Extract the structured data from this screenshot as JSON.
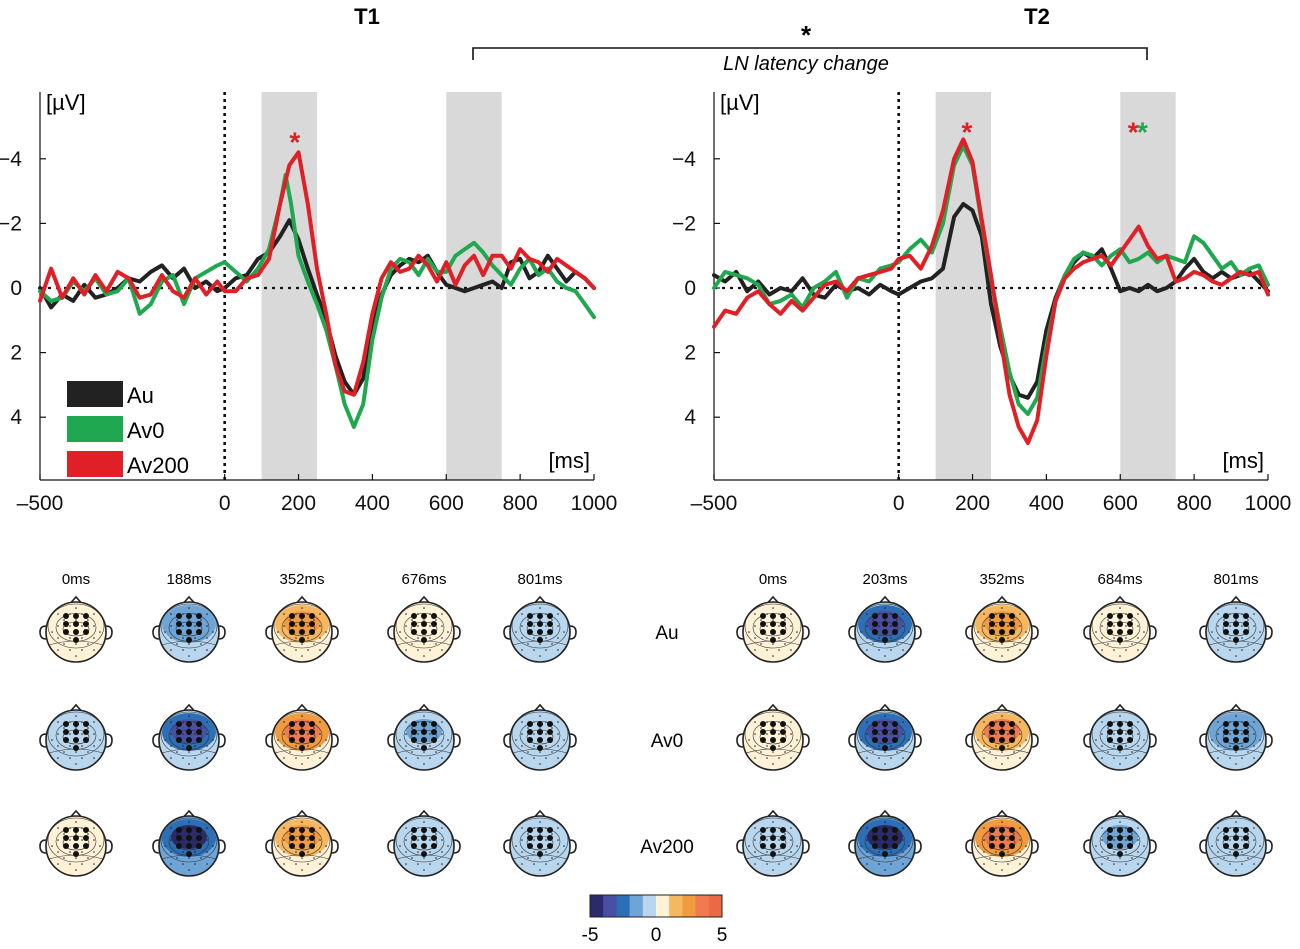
{
  "chart_data": [
    {
      "type": "line",
      "title": "T1",
      "xlabel": "[ms]",
      "ylabel": "[µV]",
      "xlim": [
        -500,
        1000
      ],
      "ylim": [
        -5.5,
        5.8
      ],
      "y_inverted": true,
      "xticks": [
        -500,
        0,
        200,
        400,
        600,
        800,
        1000
      ],
      "yticks": [
        -4,
        -2,
        0,
        2,
        4
      ],
      "ytick_labels": [
        "−4",
        "−2",
        "0",
        "2",
        "4"
      ],
      "shaded_windows": [
        [
          100,
          250
        ],
        [
          600,
          750
        ]
      ],
      "annotations": [
        {
          "text": "*",
          "x": 190,
          "y": -4.6,
          "color": "#e01f26"
        }
      ],
      "series": [
        {
          "name": "Au",
          "color": "#222222",
          "x": [
            -500,
            -470,
            -440,
            -410,
            -380,
            -350,
            -320,
            -290,
            -260,
            -230,
            -200,
            -170,
            -140,
            -110,
            -80,
            -50,
            -20,
            0,
            30,
            60,
            90,
            120,
            150,
            175,
            200,
            225,
            250,
            275,
            300,
            325,
            350,
            375,
            400,
            425,
            450,
            475,
            500,
            525,
            550,
            575,
            600,
            625,
            650,
            675,
            700,
            725,
            750,
            775,
            800,
            825,
            850,
            875,
            900,
            925,
            950,
            975,
            1000
          ],
          "values": [
            0,
            0.6,
            0.2,
            0.4,
            -0.1,
            0.3,
            0.2,
            0,
            -0.3,
            -0.2,
            -0.5,
            -0.7,
            -0.3,
            -0.6,
            0,
            -0.2,
            0.1,
            0,
            -0.3,
            -0.4,
            -0.9,
            -1.1,
            -1.6,
            -2.1,
            -1.5,
            -0.6,
            0.2,
            1.0,
            2.1,
            2.9,
            3.3,
            2.8,
            1.2,
            0.2,
            -0.4,
            -0.7,
            -0.9,
            -0.8,
            -1.0,
            -0.5,
            -0.1,
            0,
            0.1,
            0,
            -0.1,
            -0.2,
            0,
            -0.8,
            -0.9,
            -0.3,
            -0.5,
            -1.0,
            -0.6,
            -0.2,
            -0.5,
            -0.3,
            0
          ]
        },
        {
          "name": "Av0",
          "color": "#1fa84f",
          "x": [
            -500,
            -470,
            -440,
            -410,
            -380,
            -350,
            -320,
            -290,
            -260,
            -230,
            -200,
            -170,
            -140,
            -110,
            -80,
            -50,
            -20,
            0,
            30,
            60,
            90,
            120,
            150,
            165,
            180,
            200,
            225,
            250,
            275,
            300,
            325,
            350,
            375,
            400,
            425,
            450,
            475,
            500,
            525,
            550,
            575,
            600,
            625,
            650,
            675,
            700,
            725,
            750,
            775,
            800,
            825,
            850,
            875,
            900,
            925,
            950,
            975,
            1000
          ],
          "values": [
            0.1,
            0.4,
            0.3,
            -0.2,
            0.1,
            -0.3,
            0.2,
            0.1,
            -0.3,
            0.8,
            0.5,
            -0.2,
            -0.4,
            0.5,
            -0.3,
            -0.5,
            -0.7,
            -0.8,
            -0.5,
            -0.2,
            -0.6,
            -1.2,
            -2.6,
            -3.5,
            -2.6,
            -1.0,
            -0.2,
            0.5,
            1.3,
            2.4,
            3.6,
            4.3,
            3.6,
            1.6,
            0.3,
            -0.6,
            -0.9,
            -0.8,
            -0.4,
            -0.9,
            -0.5,
            -0.5,
            -1.0,
            -1.2,
            -1.4,
            -1.1,
            -0.7,
            -0.4,
            -0.1,
            -0.6,
            -0.9,
            -0.4,
            -0.6,
            -0.2,
            0,
            0.1,
            0.5,
            0.9
          ]
        },
        {
          "name": "Av200",
          "color": "#e01f26",
          "x": [
            -500,
            -470,
            -440,
            -410,
            -380,
            -350,
            -320,
            -290,
            -260,
            -230,
            -200,
            -170,
            -140,
            -110,
            -80,
            -50,
            -20,
            0,
            30,
            60,
            90,
            120,
            150,
            175,
            200,
            225,
            250,
            275,
            300,
            325,
            350,
            375,
            400,
            425,
            450,
            475,
            500,
            525,
            550,
            575,
            600,
            625,
            650,
            675,
            700,
            725,
            750,
            775,
            800,
            825,
            850,
            875,
            900,
            925,
            950,
            975,
            1000
          ],
          "values": [
            0.4,
            -0.6,
            0.3,
            -0.3,
            0.2,
            -0.4,
            0.1,
            -0.5,
            -0.3,
            0.3,
            0.2,
            -0.4,
            0.1,
            0.3,
            -0.3,
            0.2,
            -0.2,
            0.1,
            0.1,
            -0.3,
            -0.4,
            -0.9,
            -2.6,
            -3.8,
            -4.2,
            -2.6,
            -0.6,
            0.8,
            2.4,
            3.2,
            3.3,
            2.3,
            0.8,
            -0.3,
            -0.8,
            -0.5,
            -0.6,
            -1.0,
            -0.7,
            -0.2,
            -0.8,
            -0.1,
            -0.7,
            -1.0,
            -0.4,
            -1.0,
            -1.0,
            -0.6,
            -1.2,
            -0.9,
            -0.8,
            -0.5,
            -0.9,
            -0.7,
            -0.5,
            -0.3,
            0
          ]
        }
      ]
    },
    {
      "type": "line",
      "title": "T2",
      "xlabel": "[ms]",
      "ylabel": "[µV]",
      "xlim": [
        -500,
        1000
      ],
      "ylim": [
        -5.5,
        5.8
      ],
      "y_inverted": true,
      "xticks": [
        -500,
        0,
        200,
        400,
        600,
        800,
        1000
      ],
      "yticks": [
        -4,
        -2,
        0,
        2,
        4
      ],
      "ytick_labels": [
        "−4",
        "−2",
        "0",
        "2",
        "4"
      ],
      "shaded_windows": [
        [
          100,
          250
        ],
        [
          600,
          750
        ]
      ],
      "annotations": [
        {
          "text": "*",
          "x": 185,
          "y": -4.9,
          "color": "#e01f26"
        },
        {
          "text": "*",
          "x": 635,
          "y": -4.9,
          "color": "#e01f26"
        },
        {
          "text": "*",
          "x": 660,
          "y": -4.9,
          "color": "#1fa84f"
        }
      ],
      "series": [
        {
          "name": "Au",
          "color": "#222222",
          "x": [
            -500,
            -470,
            -440,
            -410,
            -380,
            -350,
            -320,
            -290,
            -260,
            -230,
            -200,
            -170,
            -140,
            -110,
            -80,
            -50,
            -20,
            0,
            30,
            60,
            90,
            120,
            150,
            175,
            200,
            225,
            250,
            275,
            300,
            325,
            350,
            375,
            400,
            425,
            450,
            475,
            500,
            525,
            550,
            575,
            600,
            625,
            650,
            675,
            700,
            725,
            750,
            775,
            800,
            825,
            850,
            875,
            900,
            925,
            950,
            975,
            1000
          ],
          "values": [
            -0.4,
            -0.2,
            -0.5,
            0.1,
            -0.2,
            0.2,
            0,
            0.1,
            -0.3,
            0.2,
            0.3,
            -0.1,
            0.1,
            0,
            0.2,
            -0.1,
            0.1,
            0.2,
            0,
            -0.2,
            -0.3,
            -0.6,
            -2.2,
            -2.6,
            -2.4,
            -1.6,
            0.5,
            1.8,
            2.7,
            3.3,
            3.4,
            2.9,
            1.3,
            0.3,
            -0.4,
            -0.8,
            -1.1,
            -0.9,
            -1.2,
            -0.6,
            0.1,
            0,
            0.1,
            -0.1,
            0.1,
            0,
            -0.2,
            -0.6,
            -0.9,
            -0.5,
            -0.3,
            -0.5,
            -0.3,
            -0.4,
            -0.5,
            -0.2,
            0.1
          ]
        },
        {
          "name": "Av0",
          "color": "#1fa84f",
          "x": [
            -500,
            -470,
            -440,
            -410,
            -380,
            -350,
            -320,
            -290,
            -260,
            -230,
            -200,
            -170,
            -140,
            -110,
            -80,
            -50,
            -20,
            0,
            30,
            60,
            90,
            120,
            150,
            175,
            200,
            225,
            250,
            275,
            300,
            325,
            350,
            375,
            400,
            425,
            450,
            475,
            500,
            525,
            550,
            575,
            600,
            625,
            650,
            675,
            700,
            725,
            750,
            775,
            800,
            825,
            850,
            875,
            900,
            925,
            950,
            975,
            1000
          ],
          "values": [
            0,
            -0.5,
            -0.4,
            -0.3,
            -0.1,
            0.5,
            0.4,
            0.2,
            0.6,
            0,
            -0.2,
            -0.5,
            0.3,
            -0.3,
            -0.2,
            -0.6,
            -0.7,
            -0.8,
            -1.2,
            -1.5,
            -1.1,
            -2.0,
            -3.8,
            -4.4,
            -3.8,
            -2.0,
            -0.3,
            1.2,
            2.6,
            3.6,
            3.9,
            3.4,
            1.8,
            0.4,
            -0.4,
            -0.9,
            -1.1,
            -1.0,
            -0.7,
            -1.0,
            -1.2,
            -0.8,
            -0.9,
            -1.1,
            -0.8,
            -1.0,
            -0.9,
            -0.8,
            -1.6,
            -1.4,
            -1.0,
            -0.6,
            -0.8,
            -0.4,
            -0.6,
            -0.7,
            -0.1
          ]
        },
        {
          "name": "Av200",
          "color": "#e01f26",
          "x": [
            -500,
            -470,
            -440,
            -410,
            -380,
            -350,
            -320,
            -290,
            -260,
            -230,
            -200,
            -170,
            -140,
            -110,
            -80,
            -50,
            -20,
            0,
            30,
            60,
            90,
            120,
            150,
            175,
            200,
            225,
            250,
            275,
            300,
            325,
            350,
            375,
            400,
            425,
            450,
            475,
            500,
            525,
            550,
            575,
            600,
            625,
            650,
            675,
            700,
            725,
            750,
            775,
            800,
            825,
            850,
            875,
            900,
            925,
            950,
            975,
            1000
          ],
          "values": [
            1.2,
            0.7,
            0.8,
            0.3,
            0.1,
            0.5,
            0.8,
            0.4,
            0.7,
            0.3,
            -0.1,
            -0.2,
            0.1,
            -0.3,
            -0.4,
            -0.5,
            -0.6,
            -0.9,
            -1.0,
            -0.6,
            -1.3,
            -2.4,
            -4.0,
            -4.6,
            -3.9,
            -2.1,
            -0.4,
            1.5,
            3.3,
            4.3,
            4.8,
            4.1,
            2.1,
            0.4,
            -0.3,
            -0.6,
            -0.8,
            -0.9,
            -1.0,
            -0.7,
            -1.1,
            -1.5,
            -1.9,
            -1.3,
            -0.9,
            -1.0,
            -0.2,
            -0.3,
            -0.5,
            -0.4,
            -0.2,
            -0.1,
            -0.3,
            -0.5,
            -0.4,
            -0.5,
            0.2
          ]
        }
      ]
    },
    {
      "type": "heatmap",
      "title": "Scalp topographies",
      "colorbar": {
        "min": -5,
        "max": 5,
        "tick_labels": [
          "-5",
          "0",
          "5"
        ],
        "colors": [
          "#2b2a6b",
          "#4a4fa3",
          "#2d6fb6",
          "#6ea4d6",
          "#b8d6ee",
          "#fff2d7",
          "#f6b760",
          "#f19a3e",
          "#ef7b4f",
          "#eb6a45"
        ]
      },
      "rows": [
        "Au",
        "Av0",
        "Av200"
      ],
      "T1_times": [
        "0ms",
        "188ms",
        "352ms",
        "676ms",
        "801ms"
      ],
      "T2_times": [
        "0ms",
        "203ms",
        "352ms",
        "684ms",
        "801ms"
      ],
      "T1_values": [
        [
          0.2,
          -2.0,
          2.8,
          0.4,
          -0.5
        ],
        [
          -0.4,
          -3.1,
          3.3,
          -1.5,
          -0.4
        ],
        [
          0.5,
          -4.4,
          2.6,
          -0.6,
          -0.9
        ]
      ],
      "T2_values": [
        [
          0.4,
          -3.4,
          2.8,
          0.6,
          -0.5
        ],
        [
          0.3,
          -4.0,
          3.0,
          -0.8,
          -2.0
        ],
        [
          -0.3,
          -4.4,
          3.4,
          -1.4,
          -0.6
        ]
      ]
    }
  ],
  "bracket": {
    "star": "*",
    "label": "LN latency change"
  },
  "legend": [
    "Au",
    "Av0",
    "Av200"
  ]
}
